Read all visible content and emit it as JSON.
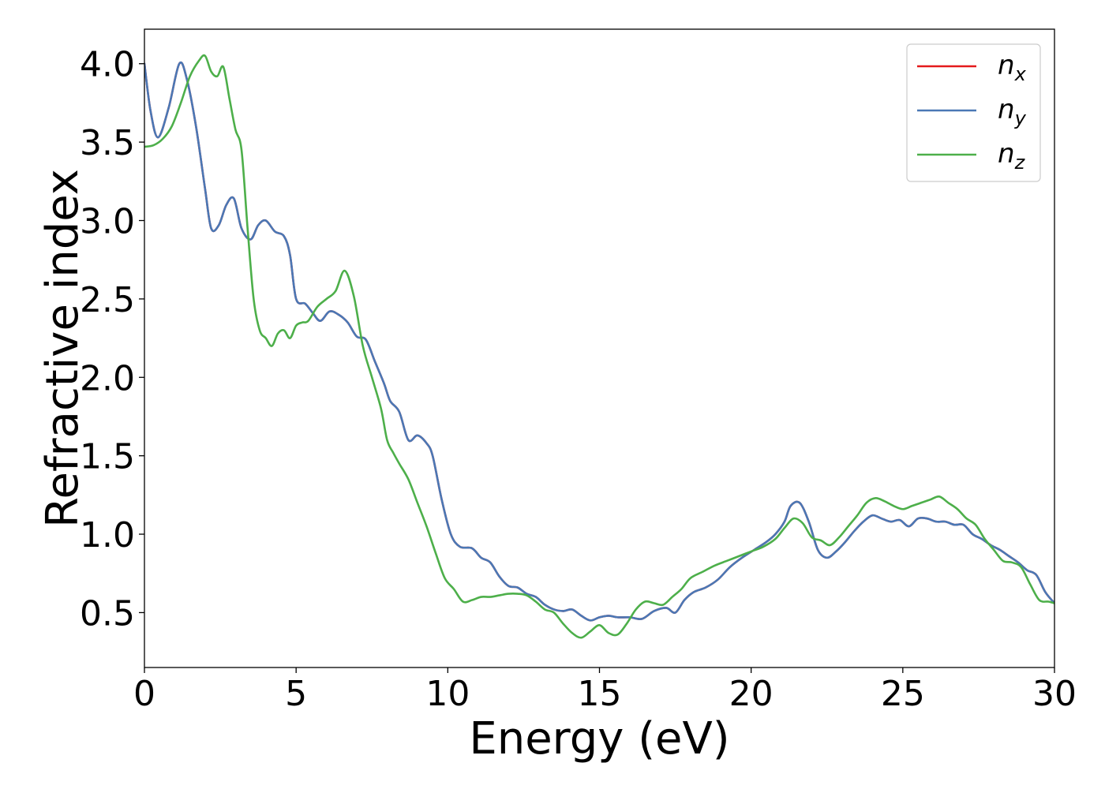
{
  "chart_data": {
    "type": "line",
    "title": "",
    "xlabel": "Energy (eV)",
    "ylabel": "Refractive index",
    "xlim": [
      0,
      30
    ],
    "ylim": [
      0.15,
      4.22
    ],
    "xticks": [
      0,
      5,
      10,
      15,
      20,
      25,
      30
    ],
    "xtick_labels": [
      "0",
      "5",
      "10",
      "15",
      "20",
      "25",
      "30"
    ],
    "yticks": [
      0.5,
      1.0,
      1.5,
      2.0,
      2.5,
      3.0,
      3.5,
      4.0
    ],
    "ytick_labels": [
      "0.5",
      "1.0",
      "1.5",
      "2.0",
      "2.5",
      "3.0",
      "3.5",
      "4.0"
    ],
    "grid": false,
    "legend_position": "top-right",
    "series": [
      {
        "name": "n_x",
        "legend_base": "n",
        "legend_sub": "x",
        "color": "#e41a1c",
        "x": [
          0,
          0.2,
          0.45,
          0.8,
          1.15,
          1.4,
          1.7,
          2.0,
          2.2,
          2.45,
          2.7,
          2.95,
          3.2,
          3.5,
          3.75,
          4.0,
          4.3,
          4.6,
          4.8,
          5.0,
          5.3,
          5.55,
          5.8,
          6.1,
          6.4,
          6.7,
          7.0,
          7.3,
          7.6,
          7.9,
          8.1,
          8.4,
          8.7,
          9.0,
          9.3,
          9.5,
          9.8,
          10.1,
          10.4,
          10.8,
          11.1,
          11.4,
          11.7,
          12.0,
          12.3,
          12.6,
          12.9,
          13.2,
          13.5,
          13.8,
          14.1,
          14.4,
          14.7,
          15.0,
          15.3,
          15.6,
          16.0,
          16.4,
          16.8,
          17.2,
          17.5,
          17.8,
          18.1,
          18.5,
          18.9,
          19.3,
          19.7,
          20.1,
          20.5,
          20.8,
          21.1,
          21.3,
          21.6,
          21.9,
          22.2,
          22.5,
          22.8,
          23.1,
          23.4,
          23.7,
          24.0,
          24.3,
          24.6,
          24.9,
          25.2,
          25.5,
          25.8,
          26.1,
          26.4,
          26.7,
          27.0,
          27.3,
          27.6,
          27.9,
          28.2,
          28.5,
          28.8,
          29.1,
          29.4,
          29.7,
          30.0
        ],
        "values": [
          4.0,
          3.7,
          3.53,
          3.72,
          4.0,
          3.9,
          3.6,
          3.2,
          2.95,
          2.97,
          3.1,
          3.14,
          2.95,
          2.88,
          2.97,
          3.0,
          2.93,
          2.9,
          2.78,
          2.5,
          2.47,
          2.41,
          2.36,
          2.42,
          2.4,
          2.35,
          2.26,
          2.24,
          2.1,
          1.96,
          1.85,
          1.78,
          1.6,
          1.63,
          1.58,
          1.5,
          1.22,
          1.0,
          0.92,
          0.91,
          0.85,
          0.82,
          0.73,
          0.67,
          0.66,
          0.62,
          0.6,
          0.55,
          0.52,
          0.51,
          0.52,
          0.48,
          0.45,
          0.47,
          0.48,
          0.47,
          0.47,
          0.46,
          0.51,
          0.53,
          0.5,
          0.58,
          0.63,
          0.66,
          0.71,
          0.79,
          0.85,
          0.9,
          0.95,
          1.0,
          1.08,
          1.18,
          1.2,
          1.08,
          0.9,
          0.85,
          0.89,
          0.95,
          1.02,
          1.08,
          1.12,
          1.1,
          1.08,
          1.09,
          1.05,
          1.1,
          1.1,
          1.08,
          1.08,
          1.06,
          1.06,
          1.0,
          0.97,
          0.93,
          0.9,
          0.86,
          0.82,
          0.77,
          0.74,
          0.63,
          0.56
        ]
      },
      {
        "name": "n_y",
        "legend_base": "n",
        "legend_sub": "y",
        "color": "#4a78b5",
        "x": [
          0,
          0.2,
          0.45,
          0.8,
          1.15,
          1.4,
          1.7,
          2.0,
          2.2,
          2.45,
          2.7,
          2.95,
          3.2,
          3.5,
          3.75,
          4.0,
          4.3,
          4.6,
          4.8,
          5.0,
          5.3,
          5.55,
          5.8,
          6.1,
          6.4,
          6.7,
          7.0,
          7.3,
          7.6,
          7.9,
          8.1,
          8.4,
          8.7,
          9.0,
          9.3,
          9.5,
          9.8,
          10.1,
          10.4,
          10.8,
          11.1,
          11.4,
          11.7,
          12.0,
          12.3,
          12.6,
          12.9,
          13.2,
          13.5,
          13.8,
          14.1,
          14.4,
          14.7,
          15.0,
          15.3,
          15.6,
          16.0,
          16.4,
          16.8,
          17.2,
          17.5,
          17.8,
          18.1,
          18.5,
          18.9,
          19.3,
          19.7,
          20.1,
          20.5,
          20.8,
          21.1,
          21.3,
          21.6,
          21.9,
          22.2,
          22.5,
          22.8,
          23.1,
          23.4,
          23.7,
          24.0,
          24.3,
          24.6,
          24.9,
          25.2,
          25.5,
          25.8,
          26.1,
          26.4,
          26.7,
          27.0,
          27.3,
          27.6,
          27.9,
          28.2,
          28.5,
          28.8,
          29.1,
          29.4,
          29.7,
          30.0
        ],
        "values": [
          4.0,
          3.7,
          3.53,
          3.72,
          4.0,
          3.9,
          3.6,
          3.2,
          2.95,
          2.97,
          3.1,
          3.14,
          2.95,
          2.88,
          2.97,
          3.0,
          2.93,
          2.9,
          2.78,
          2.5,
          2.47,
          2.41,
          2.36,
          2.42,
          2.4,
          2.35,
          2.26,
          2.24,
          2.1,
          1.96,
          1.85,
          1.78,
          1.6,
          1.63,
          1.58,
          1.5,
          1.22,
          1.0,
          0.92,
          0.91,
          0.85,
          0.82,
          0.73,
          0.67,
          0.66,
          0.62,
          0.6,
          0.55,
          0.52,
          0.51,
          0.52,
          0.48,
          0.45,
          0.47,
          0.48,
          0.47,
          0.47,
          0.46,
          0.51,
          0.53,
          0.5,
          0.58,
          0.63,
          0.66,
          0.71,
          0.79,
          0.85,
          0.9,
          0.95,
          1.0,
          1.08,
          1.18,
          1.2,
          1.08,
          0.9,
          0.85,
          0.89,
          0.95,
          1.02,
          1.08,
          1.12,
          1.1,
          1.08,
          1.09,
          1.05,
          1.1,
          1.1,
          1.08,
          1.08,
          1.06,
          1.06,
          1.0,
          0.97,
          0.93,
          0.9,
          0.86,
          0.82,
          0.77,
          0.74,
          0.63,
          0.56
        ]
      },
      {
        "name": "n_z",
        "legend_base": "n",
        "legend_sub": "z",
        "color": "#4daf4a",
        "x": [
          0,
          0.3,
          0.6,
          0.9,
          1.2,
          1.5,
          1.8,
          2.0,
          2.2,
          2.4,
          2.6,
          2.8,
          3.0,
          3.2,
          3.4,
          3.6,
          3.8,
          4.0,
          4.2,
          4.4,
          4.6,
          4.8,
          5.0,
          5.2,
          5.4,
          5.7,
          6.0,
          6.3,
          6.6,
          6.9,
          7.2,
          7.5,
          7.8,
          8.0,
          8.2,
          8.4,
          8.7,
          9.0,
          9.3,
          9.6,
          9.9,
          10.2,
          10.5,
          10.8,
          11.1,
          11.4,
          11.7,
          12.0,
          12.3,
          12.6,
          12.9,
          13.2,
          13.5,
          13.8,
          14.1,
          14.4,
          14.7,
          15.0,
          15.3,
          15.6,
          15.9,
          16.2,
          16.5,
          16.8,
          17.1,
          17.4,
          17.7,
          18.0,
          18.4,
          18.8,
          19.2,
          19.6,
          20.0,
          20.4,
          20.8,
          21.1,
          21.4,
          21.7,
          22.0,
          22.3,
          22.6,
          22.9,
          23.2,
          23.5,
          23.8,
          24.1,
          24.4,
          24.7,
          25.0,
          25.3,
          25.6,
          25.9,
          26.2,
          26.5,
          26.8,
          27.1,
          27.4,
          27.7,
          28.0,
          28.3,
          28.6,
          28.9,
          29.2,
          29.5,
          29.8,
          30.0
        ],
        "values": [
          3.47,
          3.48,
          3.52,
          3.6,
          3.75,
          3.92,
          4.02,
          4.05,
          3.95,
          3.92,
          3.98,
          3.78,
          3.58,
          3.45,
          2.95,
          2.5,
          2.3,
          2.25,
          2.2,
          2.28,
          2.3,
          2.25,
          2.33,
          2.35,
          2.36,
          2.45,
          2.5,
          2.55,
          2.68,
          2.52,
          2.2,
          2.0,
          1.8,
          1.6,
          1.52,
          1.45,
          1.35,
          1.2,
          1.05,
          0.88,
          0.72,
          0.65,
          0.57,
          0.58,
          0.6,
          0.6,
          0.61,
          0.62,
          0.62,
          0.61,
          0.57,
          0.52,
          0.5,
          0.43,
          0.37,
          0.34,
          0.38,
          0.42,
          0.37,
          0.36,
          0.43,
          0.52,
          0.57,
          0.56,
          0.55,
          0.6,
          0.65,
          0.72,
          0.76,
          0.8,
          0.83,
          0.86,
          0.89,
          0.92,
          0.97,
          1.04,
          1.1,
          1.07,
          0.98,
          0.96,
          0.93,
          0.98,
          1.05,
          1.12,
          1.2,
          1.23,
          1.21,
          1.18,
          1.16,
          1.18,
          1.2,
          1.22,
          1.24,
          1.2,
          1.16,
          1.1,
          1.06,
          0.97,
          0.9,
          0.83,
          0.82,
          0.79,
          0.68,
          0.58,
          0.57,
          0.56
        ]
      }
    ]
  }
}
